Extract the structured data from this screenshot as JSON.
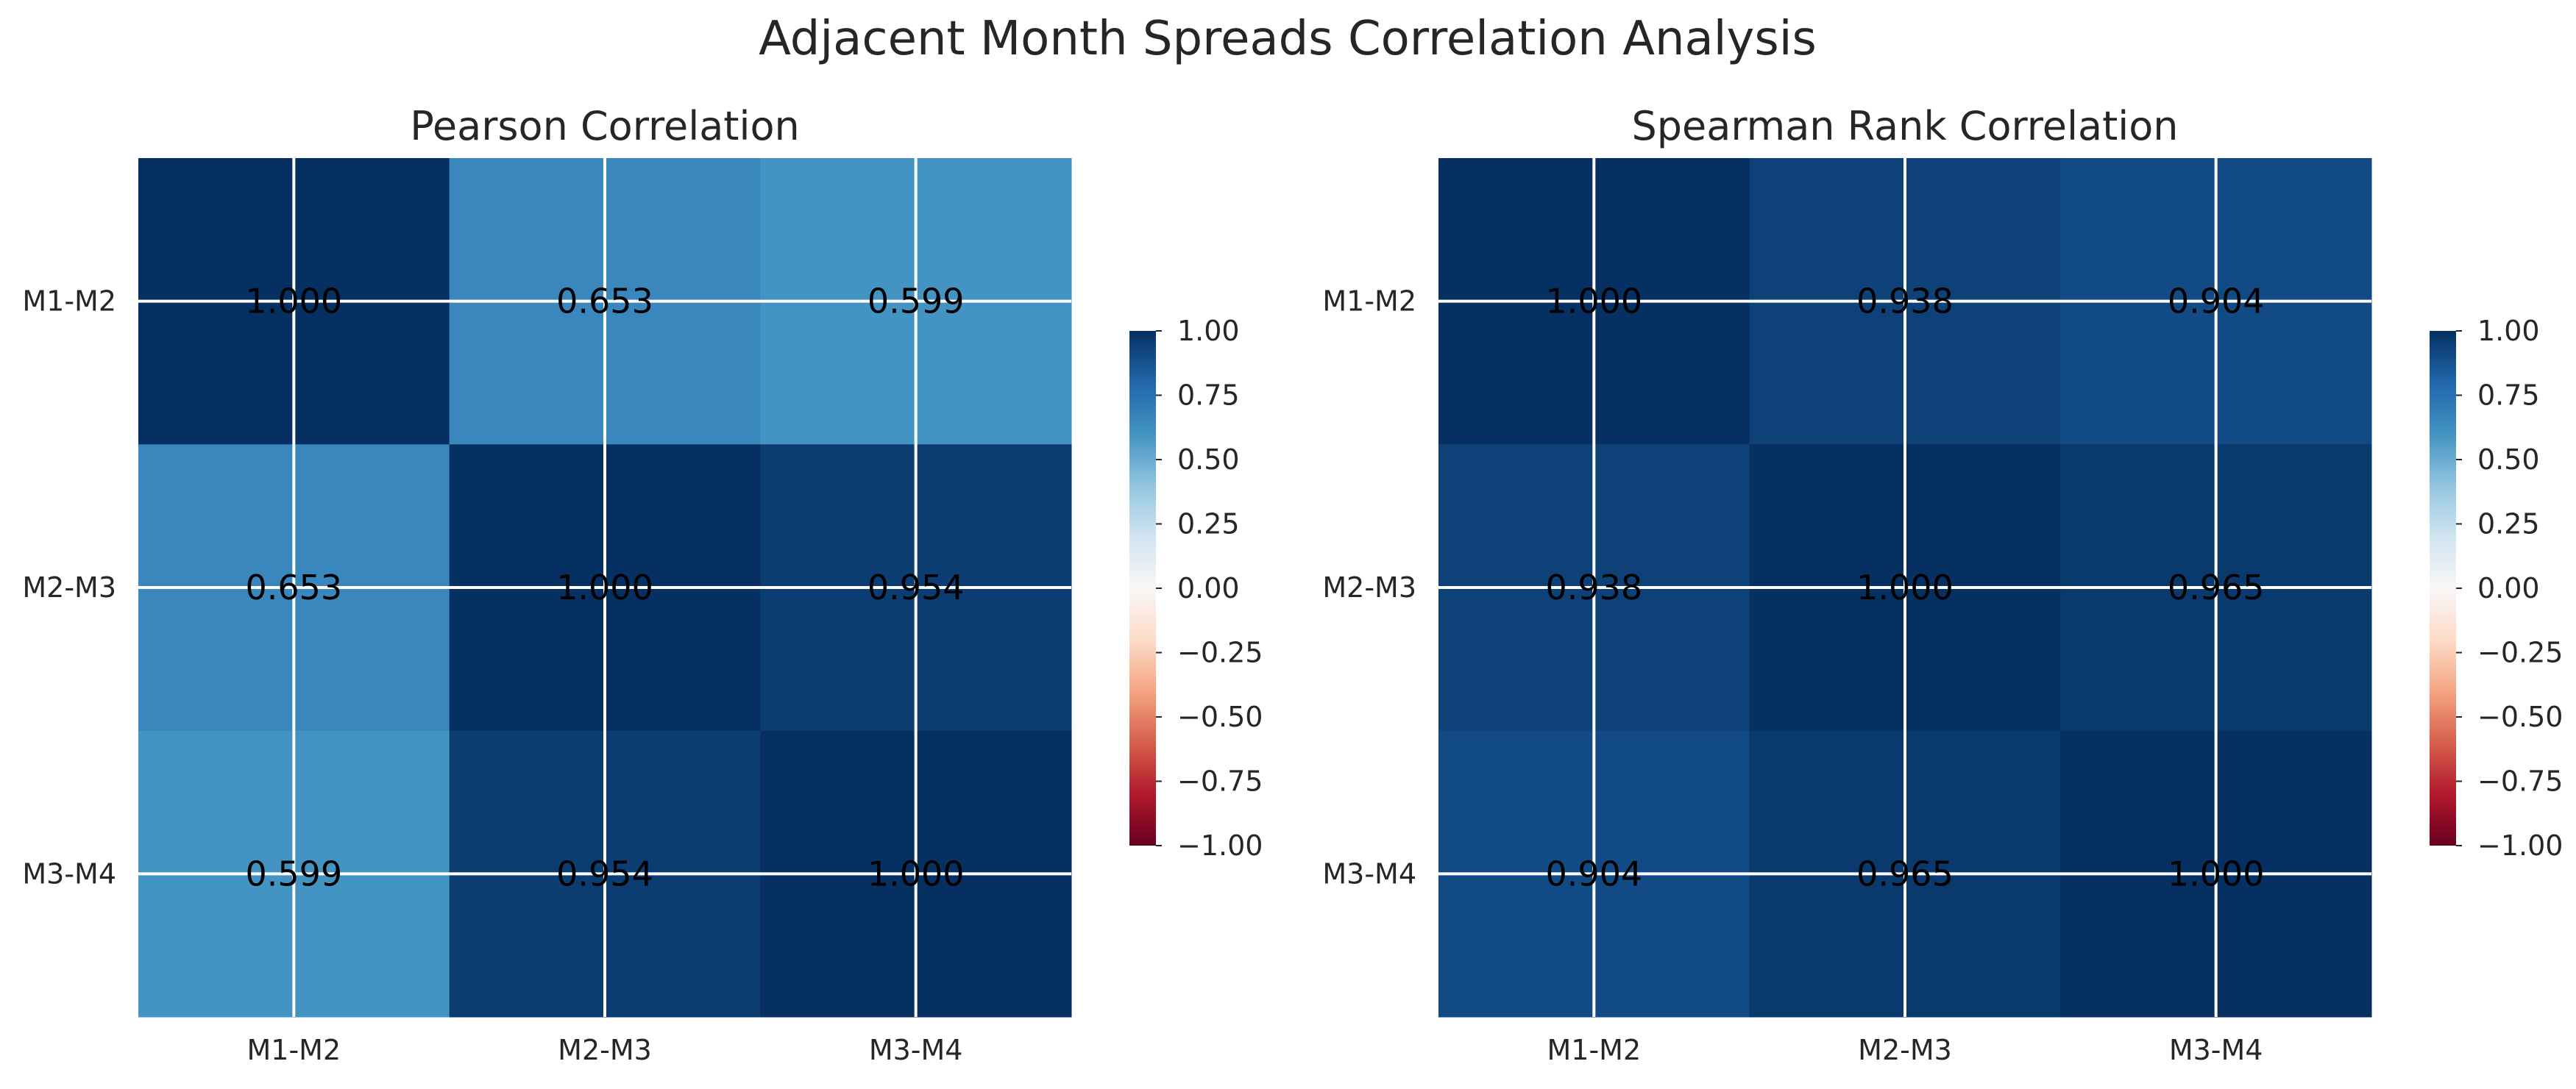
{
  "figure": {
    "title": "Adjacent Month Spreads Correlation Analysis"
  },
  "chart_data": [
    {
      "type": "heatmap",
      "title": "Pearson Correlation",
      "xlabel": "",
      "ylabel": "",
      "x_categories": [
        "M1-M2",
        "M2-M3",
        "M3-M4"
      ],
      "y_categories": [
        "M1-M2",
        "M2-M3",
        "M3-M4"
      ],
      "values": [
        [
          1.0,
          0.653,
          0.599
        ],
        [
          0.653,
          1.0,
          0.954
        ],
        [
          0.599,
          0.954,
          1.0
        ]
      ],
      "value_labels": [
        [
          "1.000",
          "0.653",
          "0.599"
        ],
        [
          "0.653",
          "1.000",
          "0.954"
        ],
        [
          "0.599",
          "0.954",
          "1.000"
        ]
      ],
      "colormap": "RdBu",
      "vmin": -1.0,
      "vmax": 1.0,
      "colorbar_ticks": [
        "1.00",
        "0.75",
        "0.50",
        "0.25",
        "0.00",
        "−0.25",
        "−0.50",
        "−0.75",
        "−1.00"
      ],
      "colorbar_tick_values": [
        1.0,
        0.75,
        0.5,
        0.25,
        0.0,
        -0.25,
        -0.5,
        -0.75,
        -1.0
      ],
      "grid": true,
      "colorbar_position": "right"
    },
    {
      "type": "heatmap",
      "title": "Spearman Rank Correlation",
      "xlabel": "",
      "ylabel": "",
      "x_categories": [
        "M1-M2",
        "M2-M3",
        "M3-M4"
      ],
      "y_categories": [
        "M1-M2",
        "M2-M3",
        "M3-M4"
      ],
      "values": [
        [
          1.0,
          0.938,
          0.904
        ],
        [
          0.938,
          1.0,
          0.965
        ],
        [
          0.904,
          0.965,
          1.0
        ]
      ],
      "value_labels": [
        [
          "1.000",
          "0.938",
          "0.904"
        ],
        [
          "0.938",
          "1.000",
          "0.965"
        ],
        [
          "0.904",
          "0.965",
          "1.000"
        ]
      ],
      "colormap": "RdBu",
      "vmin": -1.0,
      "vmax": 1.0,
      "colorbar_ticks": [
        "1.00",
        "0.75",
        "0.50",
        "0.25",
        "0.00",
        "−0.25",
        "−0.50",
        "−0.75",
        "−1.00"
      ],
      "colorbar_tick_values": [
        1.0,
        0.75,
        0.5,
        0.25,
        0.0,
        -0.25,
        -0.5,
        -0.75,
        -1.0
      ],
      "grid": true,
      "colorbar_position": "right"
    }
  ]
}
